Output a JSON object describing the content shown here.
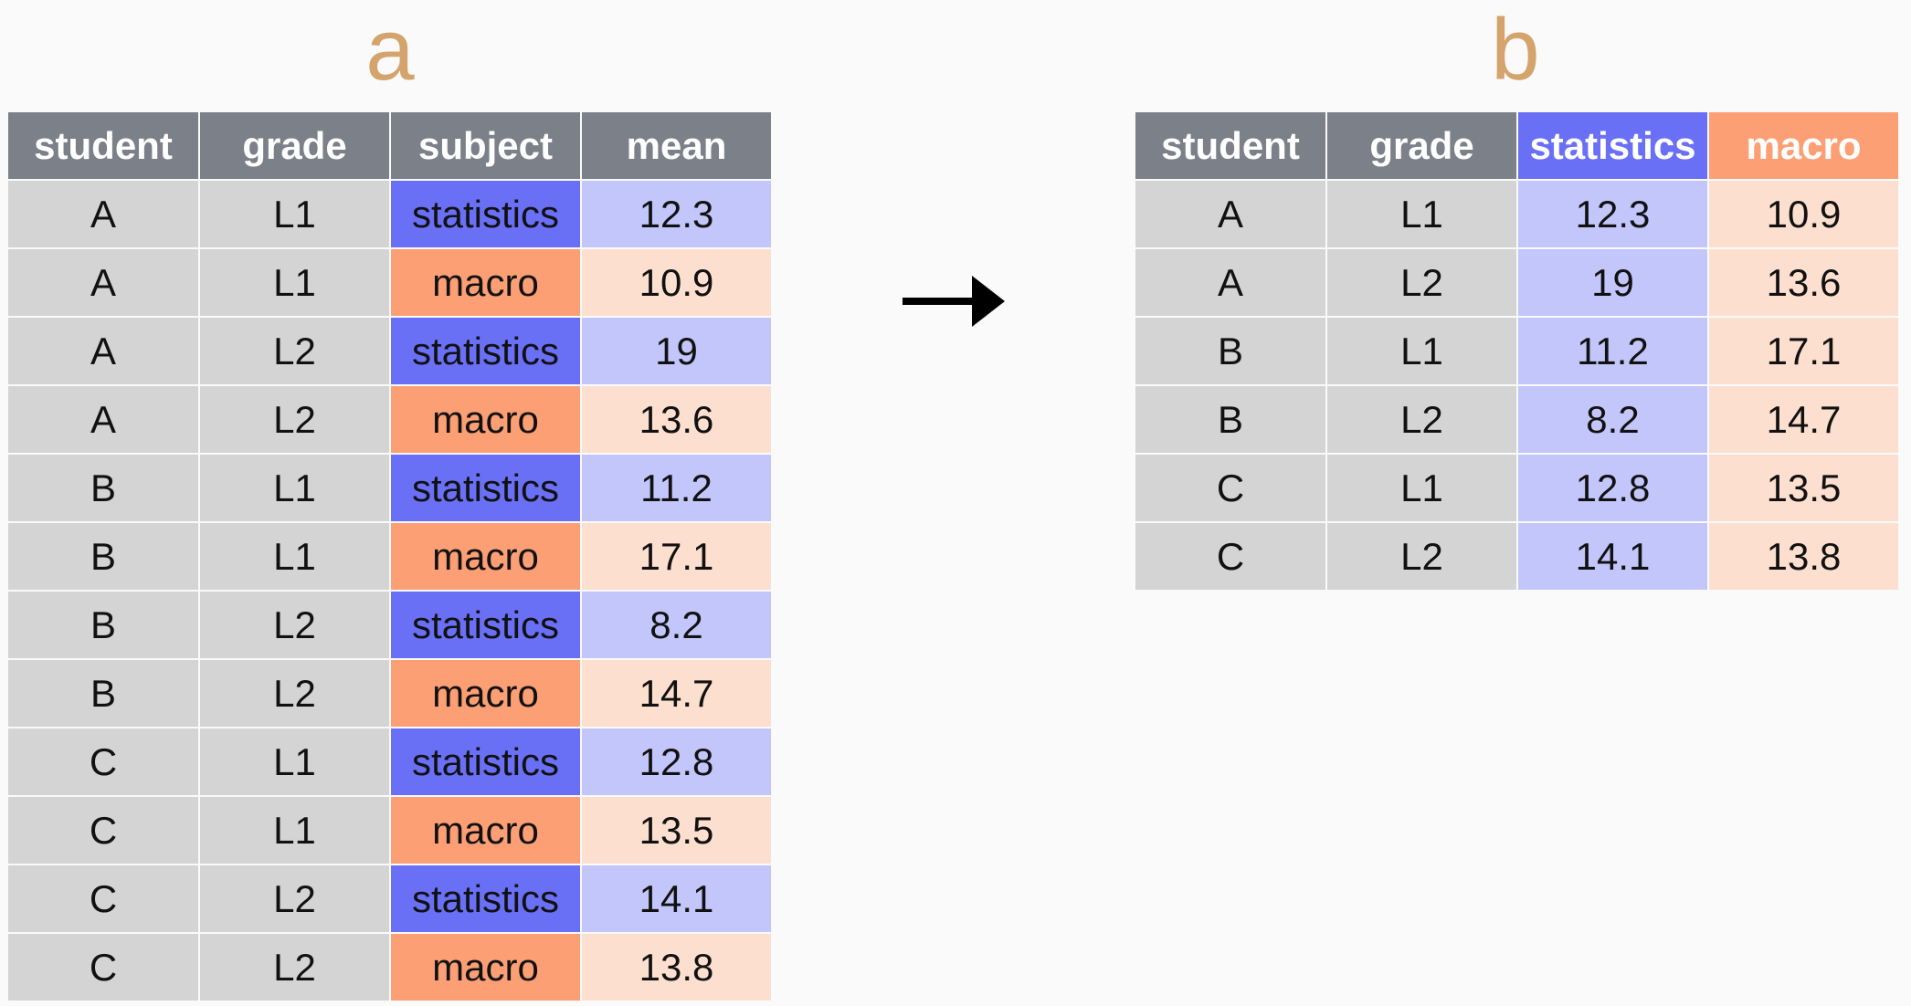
{
  "labels": {
    "a": "a",
    "b": "b"
  },
  "colors": {
    "label": "#d4a46c",
    "header": "#7b8089",
    "key_cell": "#d4d4d4",
    "statistics": "#6a70f6",
    "statistics_light": "#c2c6fb",
    "macro": "#fd9f74",
    "macro_light": "#fddfd0"
  },
  "table_a": {
    "headers": [
      "student",
      "grade",
      "subject",
      "mean"
    ],
    "rows": [
      [
        "A",
        "L1",
        "statistics",
        "12.3"
      ],
      [
        "A",
        "L1",
        "macro",
        "10.9"
      ],
      [
        "A",
        "L2",
        "statistics",
        "19"
      ],
      [
        "A",
        "L2",
        "macro",
        "13.6"
      ],
      [
        "B",
        "L1",
        "statistics",
        "11.2"
      ],
      [
        "B",
        "L1",
        "macro",
        "17.1"
      ],
      [
        "B",
        "L2",
        "statistics",
        "8.2"
      ],
      [
        "B",
        "L2",
        "macro",
        "14.7"
      ],
      [
        "C",
        "L1",
        "statistics",
        "12.8"
      ],
      [
        "C",
        "L1",
        "macro",
        "13.5"
      ],
      [
        "C",
        "L2",
        "statistics",
        "14.1"
      ],
      [
        "C",
        "L2",
        "macro",
        "13.8"
      ]
    ]
  },
  "table_b": {
    "headers": [
      "student",
      "grade",
      "statistics",
      "macro"
    ],
    "rows": [
      [
        "A",
        "L1",
        "12.3",
        "10.9"
      ],
      [
        "A",
        "L2",
        "19",
        "13.6"
      ],
      [
        "B",
        "L1",
        "11.2",
        "17.1"
      ],
      [
        "B",
        "L2",
        "8.2",
        "14.7"
      ],
      [
        "C",
        "L1",
        "12.8",
        "13.5"
      ],
      [
        "C",
        "L2",
        "14.1",
        "13.8"
      ]
    ]
  },
  "arrow_icon": "right-arrow-icon"
}
